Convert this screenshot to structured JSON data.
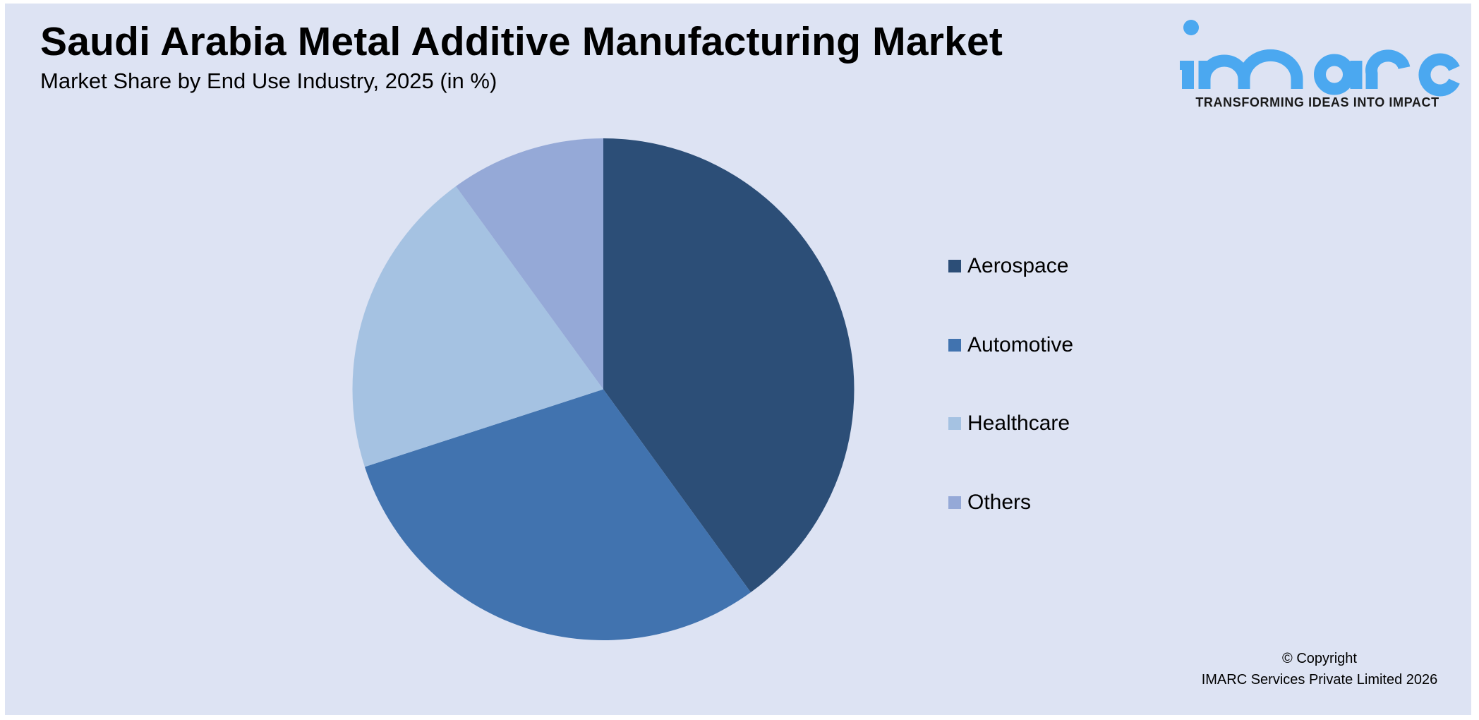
{
  "header": {
    "title": "Saudi Arabia Metal Additive Manufacturing Market",
    "subtitle": "Market Share by End Use Industry, 2025 (in %)"
  },
  "brand": {
    "logo_text": "imarc",
    "tagline": "TRANSFORMING IDEAS INTO IMPACT",
    "logo_color": "#4BA8F0"
  },
  "legend": {
    "items": [
      {
        "label": "Aerospace",
        "color": "#2C4E77"
      },
      {
        "label": "Automotive",
        "color": "#4173AF"
      },
      {
        "label": "Healthcare",
        "color": "#A5C2E2"
      },
      {
        "label": "Others",
        "color": "#95A9D7"
      }
    ]
  },
  "footer": {
    "copyright_line1": "© Copyright",
    "copyright_line2": "IMARC Services Private Limited 2026"
  },
  "chart_data": {
    "type": "pie",
    "title": "Saudi Arabia Metal Additive Manufacturing Market",
    "subtitle": "Market Share by End Use Industry, 2025 (in %)",
    "categories": [
      "Aerospace",
      "Automotive",
      "Healthcare",
      "Others"
    ],
    "values": [
      40,
      30,
      20,
      10
    ],
    "colors": [
      "#2C4E77",
      "#4173AF",
      "#A5C2E2",
      "#95A9D7"
    ],
    "start_angle_deg": 0,
    "direction": "clockwise",
    "data_labels": false,
    "legend_position": "right",
    "background": "#DDE3F3"
  }
}
